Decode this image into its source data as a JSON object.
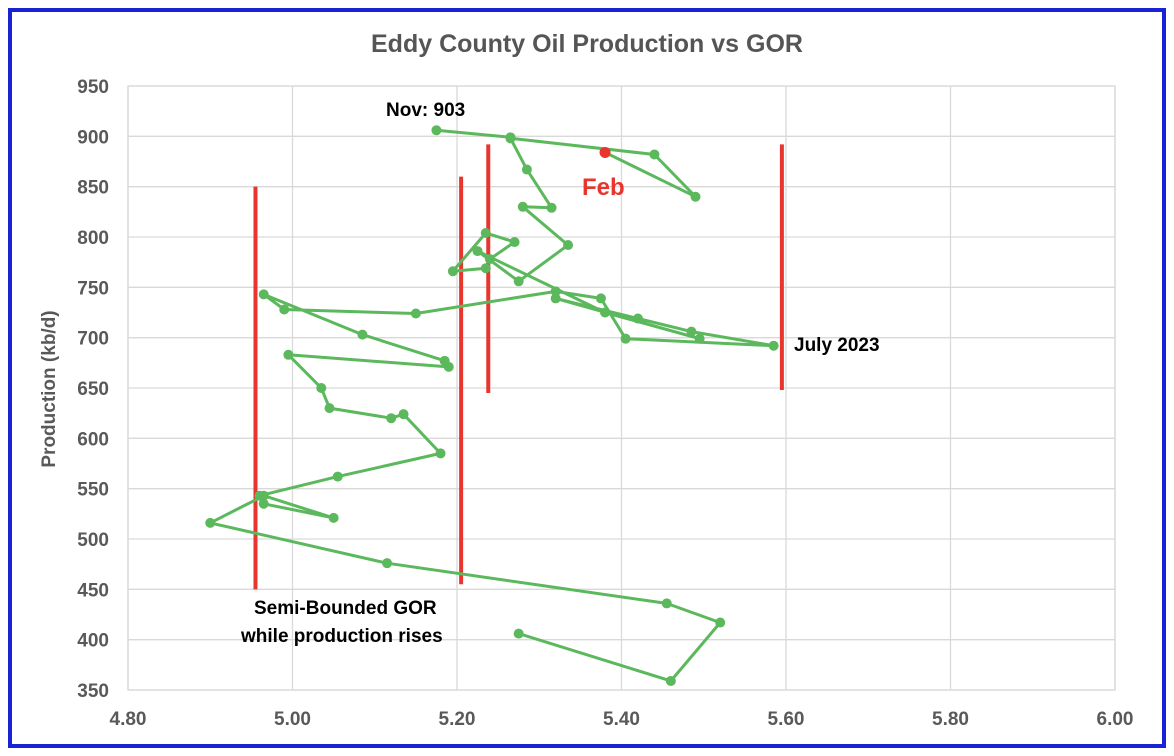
{
  "chart_data": {
    "type": "scatter",
    "title": "Eddy County Oil Production vs GOR",
    "xlabel": "",
    "ylabel": "Production (kb/d)",
    "xlim": [
      4.8,
      6.0
    ],
    "ylim": [
      350,
      950
    ],
    "x_ticks": [
      "4.80",
      "5.00",
      "5.20",
      "5.40",
      "5.60",
      "5.80",
      "6.00"
    ],
    "y_ticks": [
      "350",
      "400",
      "450",
      "500",
      "550",
      "600",
      "650",
      "700",
      "750",
      "800",
      "850",
      "900",
      "950"
    ],
    "grid": true,
    "series": [
      {
        "color": "#5cb85c",
        "points": [
          [
            5.275,
            406
          ],
          [
            5.46,
            359
          ],
          [
            5.52,
            417
          ],
          [
            5.455,
            436
          ],
          [
            5.115,
            476
          ],
          [
            4.9,
            516
          ],
          [
            4.965,
            543
          ],
          [
            5.05,
            521
          ],
          [
            4.965,
            535
          ],
          [
            4.96,
            543
          ],
          [
            5.055,
            562
          ],
          [
            5.18,
            585
          ],
          [
            5.135,
            624
          ],
          [
            5.12,
            620
          ],
          [
            5.045,
            630
          ],
          [
            5.035,
            650
          ],
          [
            4.995,
            683
          ],
          [
            5.19,
            671
          ],
          [
            5.185,
            677
          ],
          [
            5.085,
            703
          ],
          [
            4.965,
            743
          ],
          [
            4.99,
            728
          ],
          [
            5.15,
            724
          ],
          [
            5.32,
            746
          ],
          [
            5.375,
            739
          ],
          [
            5.405,
            699
          ],
          [
            5.585,
            692
          ],
          [
            5.485,
            706
          ],
          [
            5.42,
            719
          ],
          [
            5.32,
            739
          ],
          [
            5.495,
            699
          ],
          [
            5.38,
            725
          ],
          [
            5.225,
            786
          ],
          [
            5.275,
            756
          ],
          [
            5.335,
            792
          ],
          [
            5.28,
            830
          ],
          [
            5.315,
            829
          ],
          [
            5.285,
            867
          ],
          [
            5.265,
            898
          ],
          [
            5.44,
            882
          ],
          [
            5.49,
            840
          ],
          [
            5.38,
            884
          ]
        ]
      },
      {
        "color": "#5cb85c",
        "points": [
          [
            5.235,
            769
          ],
          [
            5.195,
            766
          ],
          [
            5.235,
            804
          ],
          [
            5.27,
            795
          ],
          [
            5.24,
            778
          ]
        ]
      },
      {
        "color": "#5cb85c",
        "points": [
          [
            5.175,
            906
          ],
          [
            5.265,
            899
          ]
        ]
      }
    ],
    "highlight_point": {
      "x": 5.38,
      "y": 884,
      "color": "#e8352e"
    },
    "vertical_lines": [
      {
        "x": 4.955,
        "y_from": 450,
        "y_to": 850,
        "color": "#e8352e"
      },
      {
        "x": 5.205,
        "y_from": 455,
        "y_to": 860,
        "color": "#e8352e"
      },
      {
        "x": 5.238,
        "y_from": 645,
        "y_to": 892,
        "color": "#e8352e"
      },
      {
        "x": 5.595,
        "y_from": 648,
        "y_to": 892,
        "color": "#e8352e"
      }
    ],
    "annotations": [
      {
        "text": "Nov: 903"
      },
      {
        "text": "Feb",
        "color": "#e8352e"
      },
      {
        "text": "July 2023"
      },
      {
        "text": "Semi-Bounded GOR"
      },
      {
        "text": "while production rises"
      }
    ]
  }
}
